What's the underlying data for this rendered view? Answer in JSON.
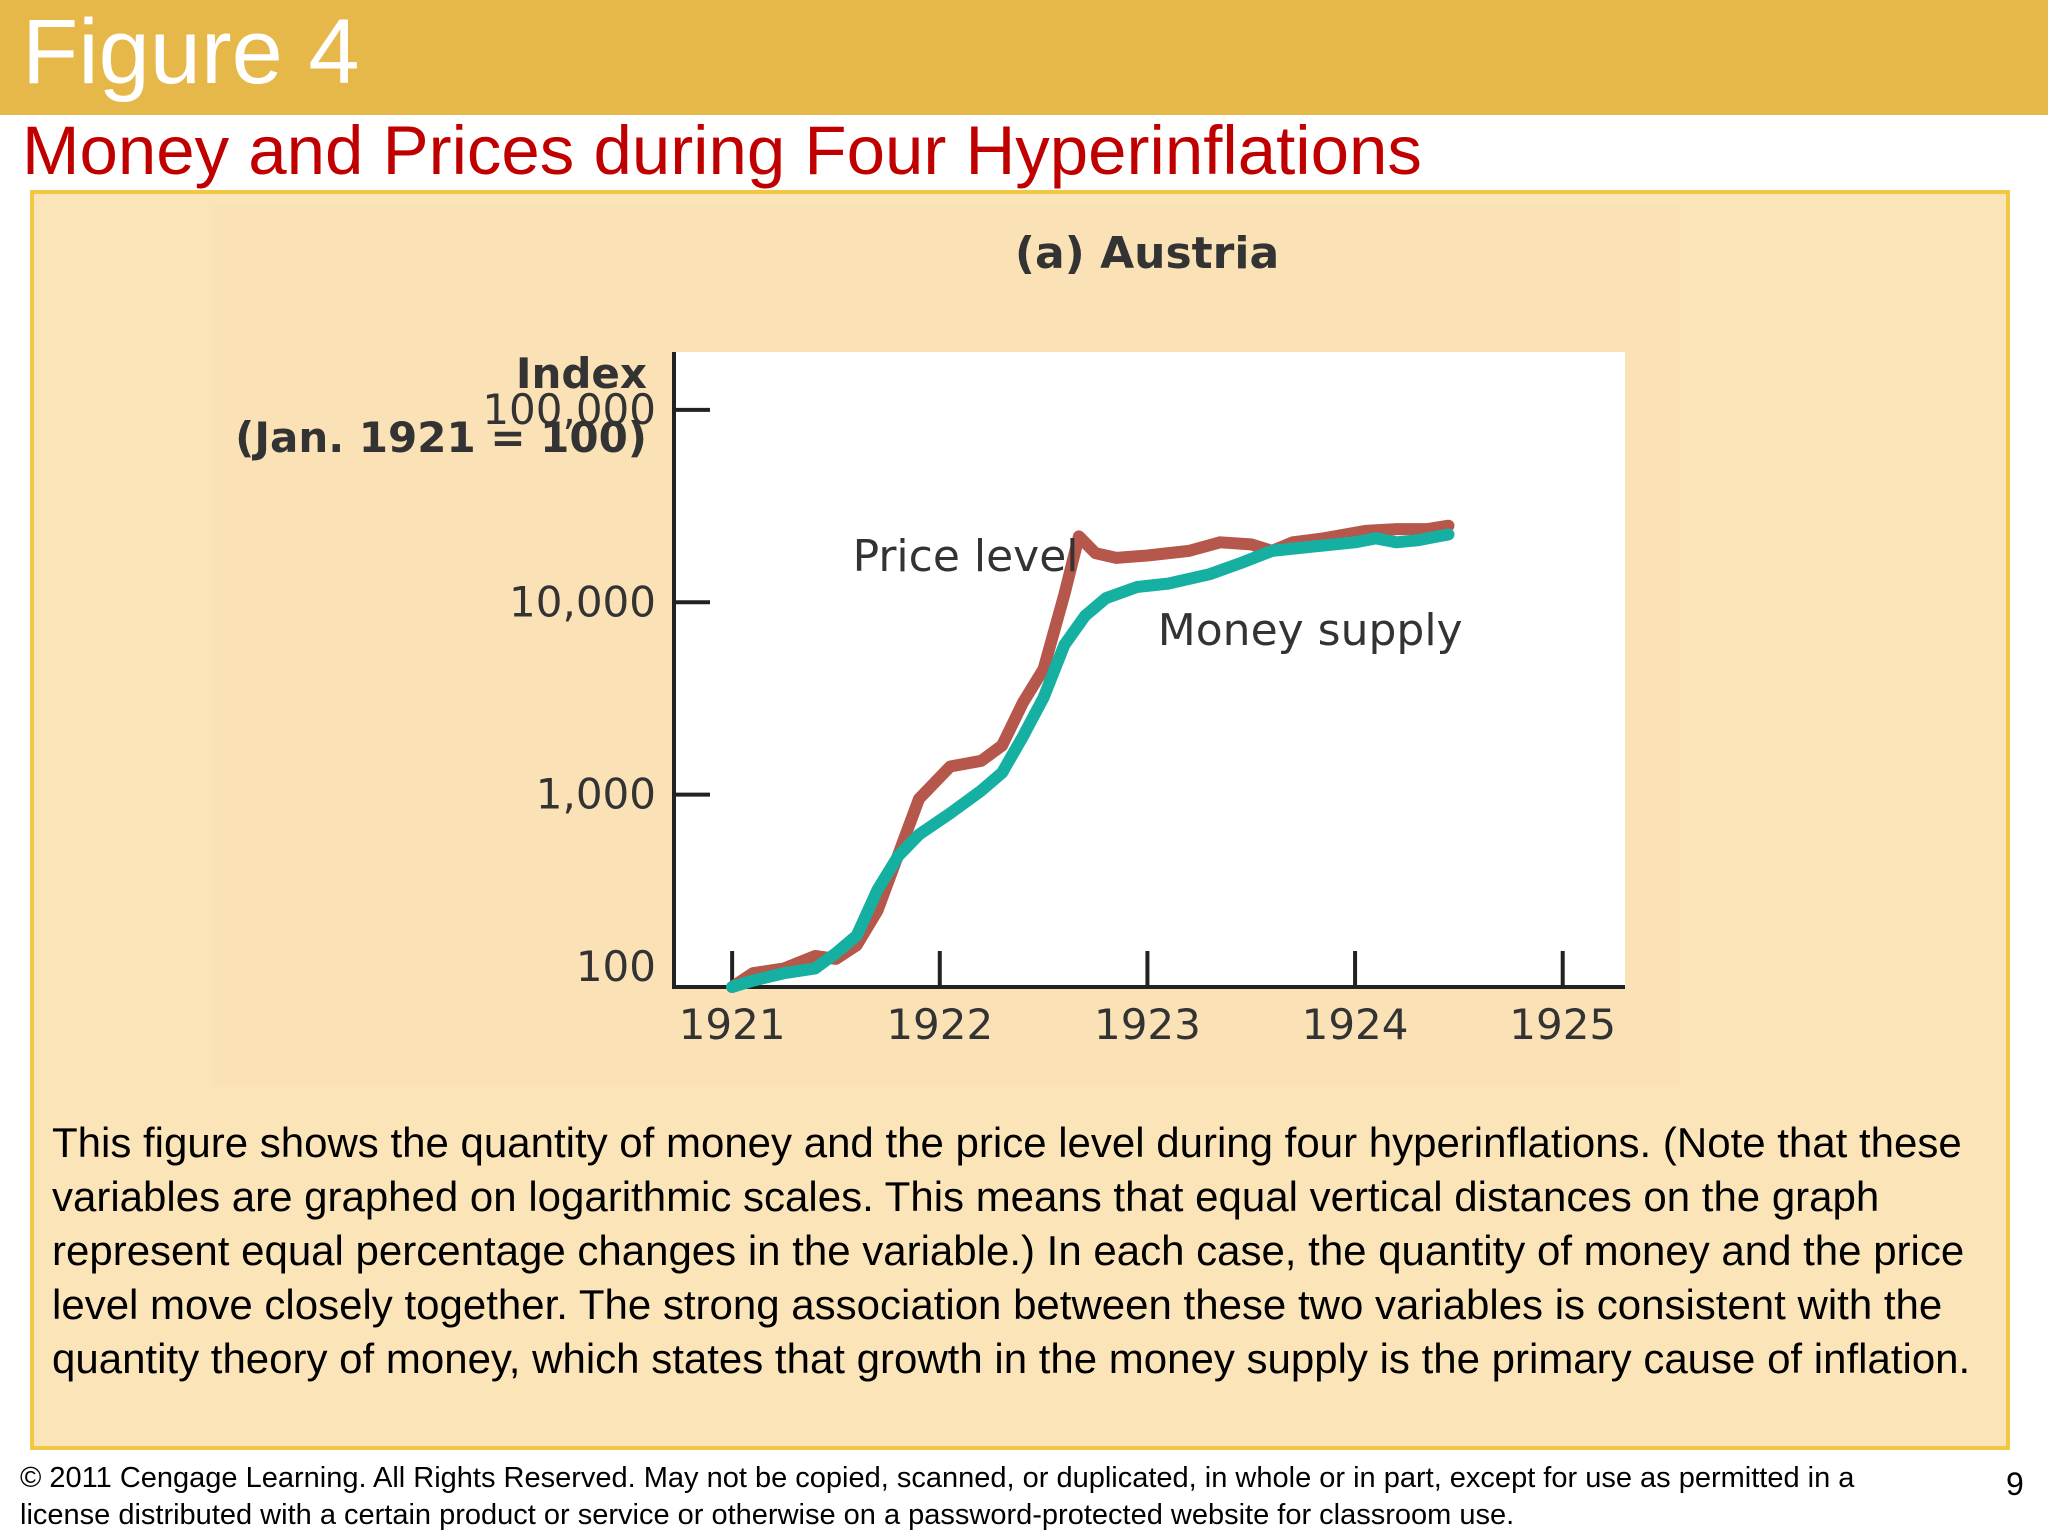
{
  "header": {
    "figure_label": "Figure 4"
  },
  "title": "Money and Prices during Four Hyperinflations",
  "chart_data": {
    "type": "line",
    "title": "(a) Austria",
    "ylabel_line1": "Index",
    "ylabel_line2": "(Jan. 1921 = 100)",
    "y_scale": "log",
    "ylim": [
      100,
      200000
    ],
    "xlim": [
      1920.72,
      1925.3
    ],
    "y_ticks": [
      {
        "value": 100,
        "label": "100"
      },
      {
        "value": 1000,
        "label": "1,000"
      },
      {
        "value": 10000,
        "label": "10,000"
      },
      {
        "value": 100000,
        "label": "100,000"
      }
    ],
    "x_ticks": [
      {
        "value": 1921,
        "label": "1921"
      },
      {
        "value": 1922,
        "label": "1922"
      },
      {
        "value": 1923,
        "label": "1923"
      },
      {
        "value": 1924,
        "label": "1924"
      },
      {
        "value": 1925,
        "label": "1925"
      }
    ],
    "series": [
      {
        "name": "Price level",
        "color": "#b5574a",
        "label_at": [
          1921.58,
          14500
        ],
        "points": [
          [
            1921.0,
            100
          ],
          [
            1921.1,
            118
          ],
          [
            1921.25,
            125
          ],
          [
            1921.4,
            145
          ],
          [
            1921.5,
            140
          ],
          [
            1921.6,
            165
          ],
          [
            1921.7,
            250
          ],
          [
            1921.9,
            950
          ],
          [
            1922.05,
            1400
          ],
          [
            1922.2,
            1500
          ],
          [
            1922.3,
            1800
          ],
          [
            1922.4,
            3000
          ],
          [
            1922.5,
            4500
          ],
          [
            1922.6,
            11000
          ],
          [
            1922.67,
            22000
          ],
          [
            1922.75,
            18000
          ],
          [
            1922.85,
            17000
          ],
          [
            1923.0,
            17500
          ],
          [
            1923.2,
            18500
          ],
          [
            1923.35,
            20500
          ],
          [
            1923.5,
            20000
          ],
          [
            1923.6,
            18500
          ],
          [
            1923.7,
            20500
          ],
          [
            1923.85,
            21500
          ],
          [
            1924.05,
            23500
          ],
          [
            1924.2,
            24000
          ],
          [
            1924.35,
            24000
          ],
          [
            1924.45,
            25000
          ]
        ]
      },
      {
        "name": "Money supply",
        "color": "#16b0a3",
        "label_at": [
          1923.05,
          6000
        ],
        "points": [
          [
            1921.0,
            100
          ],
          [
            1921.1,
            108
          ],
          [
            1921.25,
            118
          ],
          [
            1921.4,
            125
          ],
          [
            1921.5,
            150
          ],
          [
            1921.6,
            185
          ],
          [
            1921.7,
            320
          ],
          [
            1921.8,
            480
          ],
          [
            1921.9,
            620
          ],
          [
            1922.05,
            800
          ],
          [
            1922.2,
            1050
          ],
          [
            1922.3,
            1300
          ],
          [
            1922.4,
            2000
          ],
          [
            1922.5,
            3200
          ],
          [
            1922.6,
            6000
          ],
          [
            1922.7,
            8500
          ],
          [
            1922.8,
            10500
          ],
          [
            1922.95,
            12000
          ],
          [
            1923.1,
            12500
          ],
          [
            1923.3,
            14000
          ],
          [
            1923.45,
            16000
          ],
          [
            1923.6,
            18500
          ],
          [
            1923.8,
            19500
          ],
          [
            1924.0,
            20500
          ],
          [
            1924.1,
            21500
          ],
          [
            1924.2,
            20500
          ],
          [
            1924.3,
            21000
          ],
          [
            1924.4,
            22000
          ],
          [
            1924.45,
            22500
          ]
        ]
      }
    ]
  },
  "caption": "This figure shows the quantity of money and the price level during four hyperinflations. (Note that these variables are graphed on logarithmic scales. This means that equal vertical distances on the graph represent equal percentage changes in the variable.) In each case, the quantity of money and the price level move closely together. The strong association between these two variables is consistent with the quantity theory of money, which states that growth in the money supply is the primary cause of inflation.",
  "footer": {
    "copyright": "© 2011 Cengage Learning. All Rights Reserved. May not be copied, scanned, or duplicated, in whole or in part, except for use as permitted in a license distributed with a certain product or service or otherwise on a password-protected website for classroom use.",
    "page_number": "9"
  }
}
